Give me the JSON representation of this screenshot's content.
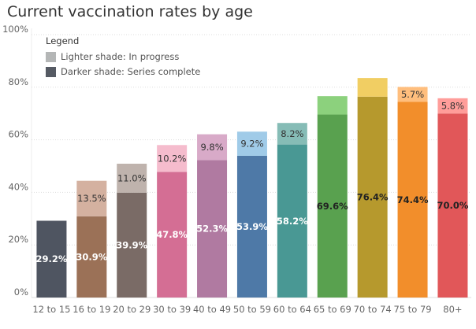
{
  "chart_data": {
    "type": "bar",
    "title": "Current vaccination rates by age",
    "xlabel": "",
    "ylabel": "",
    "ylim": [
      0,
      100
    ],
    "yticks": [
      "0%",
      "20%",
      "40%",
      "60%",
      "80%",
      "100%"
    ],
    "grid": true,
    "stacked": true,
    "legend": {
      "title": "Legend",
      "placement": "top-left",
      "items": [
        {
          "label": "Lighter shade: In progress",
          "color": "#b4b6b6"
        },
        {
          "label": "Darker shade: Series complete",
          "color": "#555a63"
        }
      ]
    },
    "categories": [
      "12 to 15",
      "16 to 19",
      "20 to 29",
      "30 to 39",
      "40 to 49",
      "50 to 59",
      "60 to 64",
      "65 to 69",
      "70 to 74",
      "75 to 79",
      "80+"
    ],
    "series": [
      {
        "name": "Series complete",
        "values": [
          29.2,
          30.9,
          39.9,
          47.8,
          52.3,
          53.9,
          58.2,
          69.6,
          76.4,
          74.4,
          70.0
        ],
        "labels": [
          "29.2%",
          "30.9%",
          "39.9%",
          "47.8%",
          "52.3%",
          "53.9%",
          "58.2%",
          "69.6%",
          "76.4%",
          "74.4%",
          "70.0%"
        ],
        "colors": [
          "#4f5561",
          "#9b7157",
          "#7a6b66",
          "#d46e94",
          "#b07aa1",
          "#4e79a7",
          "#499894",
          "#59a14f",
          "#b6992d",
          "#f28e2b",
          "#e15759"
        ]
      },
      {
        "name": "In progress",
        "values": [
          0,
          13.5,
          11.0,
          10.2,
          9.8,
          9.2,
          8.2,
          7.0,
          7.1,
          5.7,
          5.8
        ],
        "labels": [
          "",
          "13.5%",
          "11.0%",
          "10.2%",
          "9.8%",
          "9.2%",
          "8.2%",
          "",
          "",
          "5.7%",
          "5.8%"
        ],
        "colors": [
          "#b4b6b6",
          "#d4b1a0",
          "#bfb3ad",
          "#f5bccd",
          "#d8aac8",
          "#a0cbe8",
          "#86bcb6",
          "#8cd17d",
          "#f1ce63",
          "#ffbe7d",
          "#ff9d9a"
        ]
      }
    ]
  }
}
